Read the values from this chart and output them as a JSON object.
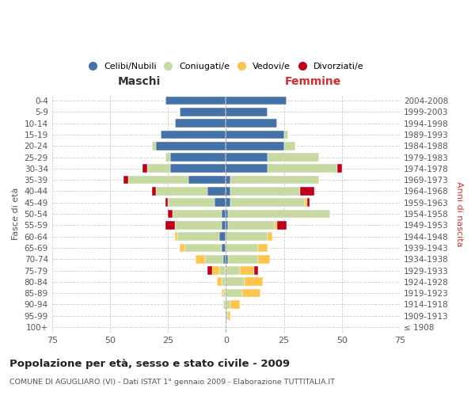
{
  "age_groups": [
    "100+",
    "95-99",
    "90-94",
    "85-89",
    "80-84",
    "75-79",
    "70-74",
    "65-69",
    "60-64",
    "55-59",
    "50-54",
    "45-49",
    "40-44",
    "35-39",
    "30-34",
    "25-29",
    "20-24",
    "15-19",
    "10-14",
    "5-9",
    "0-4"
  ],
  "birth_years": [
    "≤ 1908",
    "1909-1913",
    "1914-1918",
    "1919-1923",
    "1924-1928",
    "1929-1933",
    "1934-1938",
    "1939-1943",
    "1944-1948",
    "1949-1953",
    "1954-1958",
    "1959-1963",
    "1964-1968",
    "1969-1973",
    "1974-1978",
    "1979-1983",
    "1984-1988",
    "1989-1993",
    "1994-1998",
    "1999-2003",
    "2004-2008"
  ],
  "males": {
    "celibi": [
      0,
      0,
      0,
      0,
      0,
      0,
      1,
      2,
      3,
      2,
      2,
      5,
      8,
      16,
      24,
      24,
      30,
      28,
      22,
      20,
      26
    ],
    "coniugati": [
      0,
      0,
      1,
      1,
      2,
      3,
      8,
      16,
      18,
      20,
      21,
      20,
      22,
      26,
      10,
      2,
      2,
      0,
      0,
      0,
      0
    ],
    "vedovi": [
      0,
      0,
      0,
      1,
      2,
      3,
      4,
      2,
      1,
      0,
      0,
      0,
      0,
      0,
      0,
      0,
      0,
      0,
      0,
      0,
      0
    ],
    "divorziati": [
      0,
      0,
      0,
      0,
      0,
      2,
      0,
      0,
      0,
      4,
      2,
      1,
      2,
      2,
      2,
      0,
      0,
      0,
      0,
      0,
      0
    ]
  },
  "females": {
    "nubili": [
      0,
      0,
      0,
      0,
      0,
      0,
      1,
      0,
      0,
      1,
      1,
      2,
      2,
      2,
      18,
      18,
      25,
      25,
      22,
      18,
      26
    ],
    "coniugate": [
      0,
      1,
      2,
      7,
      8,
      6,
      13,
      14,
      18,
      20,
      44,
      32,
      30,
      38,
      30,
      22,
      5,
      2,
      0,
      0,
      0
    ],
    "vedove": [
      0,
      1,
      4,
      8,
      8,
      6,
      5,
      4,
      2,
      1,
      0,
      1,
      0,
      0,
      0,
      0,
      0,
      0,
      0,
      0,
      0
    ],
    "divorziate": [
      0,
      0,
      0,
      0,
      0,
      2,
      0,
      0,
      0,
      4,
      0,
      1,
      6,
      0,
      2,
      0,
      0,
      0,
      0,
      0,
      0
    ]
  },
  "colors": {
    "celibi": "#4472a8",
    "coniugati": "#c5d9a0",
    "vedovi": "#ffc44d",
    "divorziati": "#c0001a"
  },
  "xlim": 75,
  "title": "Popolazione per età, sesso e stato civile - 2009",
  "subtitle": "COMUNE DI AGUGLIARO (VI) - Dati ISTAT 1° gennaio 2009 - Elaborazione TUTTITALIA.IT",
  "xlabel_left": "Maschi",
  "xlabel_right": "Femmine",
  "ylabel_left": "Fasce di età",
  "ylabel_right": "Anni di nascita",
  "legend_labels": [
    "Celibi/Nubili",
    "Coniugati/e",
    "Vedovi/e",
    "Divorziati/e"
  ],
  "background_color": "#ffffff",
  "grid_color": "#cccccc"
}
